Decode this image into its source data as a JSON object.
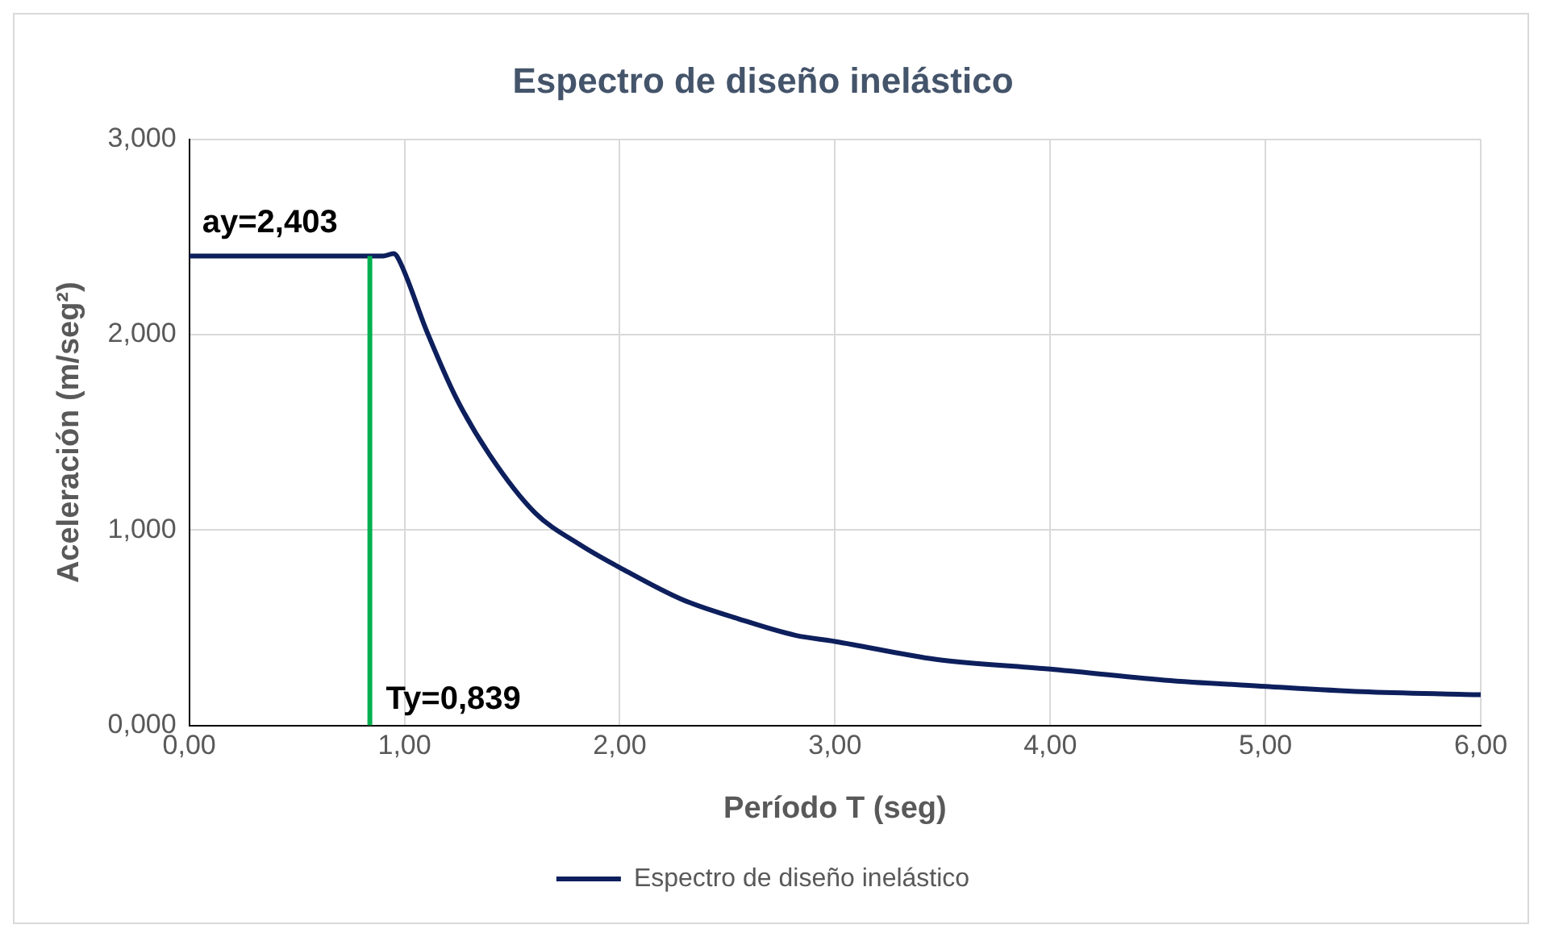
{
  "chart_data": {
    "type": "line",
    "title": "Espectro de diseño inelástico",
    "xlabel": "Período T (seg)",
    "ylabel": "Aceleración (m/seg²)",
    "series": [
      {
        "name": "Espectro de diseño inelástico",
        "color": "#0d1f5c",
        "x": [
          0,
          0.5,
          0.9,
          0.95,
          0.97,
          1.105,
          1.237,
          1.395,
          1.606,
          1.817,
          2.0,
          2.29,
          2.553,
          2.816,
          3.0,
          3.47,
          4.0,
          4.53,
          5.0,
          5.45,
          6.0
        ],
        "values": [
          2.403,
          2.403,
          2.403,
          2.415,
          2.392,
          2.013,
          1.683,
          1.386,
          1.089,
          0.924,
          0.808,
          0.644,
          0.545,
          0.461,
          0.43,
          0.338,
          0.288,
          0.232,
          0.2,
          0.173,
          0.157
        ]
      }
    ],
    "xlim": [
      0,
      6
    ],
    "xticks": [
      {
        "value": 0,
        "label": "0,00"
      },
      {
        "value": 1,
        "label": "1,00"
      },
      {
        "value": 2,
        "label": "2,00"
      },
      {
        "value": 3,
        "label": "3,00"
      },
      {
        "value": 4,
        "label": "4,00"
      },
      {
        "value": 5,
        "label": "5,00"
      },
      {
        "value": 6,
        "label": "6,00"
      }
    ],
    "ylim": [
      0,
      3
    ],
    "yticks": [
      {
        "value": 0,
        "label": "0,000"
      },
      {
        "value": 1,
        "label": "1,000"
      },
      {
        "value": 2,
        "label": "2,000"
      },
      {
        "value": 3,
        "label": "3,000"
      }
    ],
    "ref_lines": [
      {
        "axis": "x",
        "value": 0.839,
        "label": "Ty=0,839",
        "color": "#00b050"
      }
    ],
    "annotations": [
      {
        "text": "ay=2,403",
        "x": 0,
        "y": 2.403
      }
    ],
    "grid": true,
    "legend": "bottom",
    "marker": "none",
    "line_style": "solid"
  }
}
